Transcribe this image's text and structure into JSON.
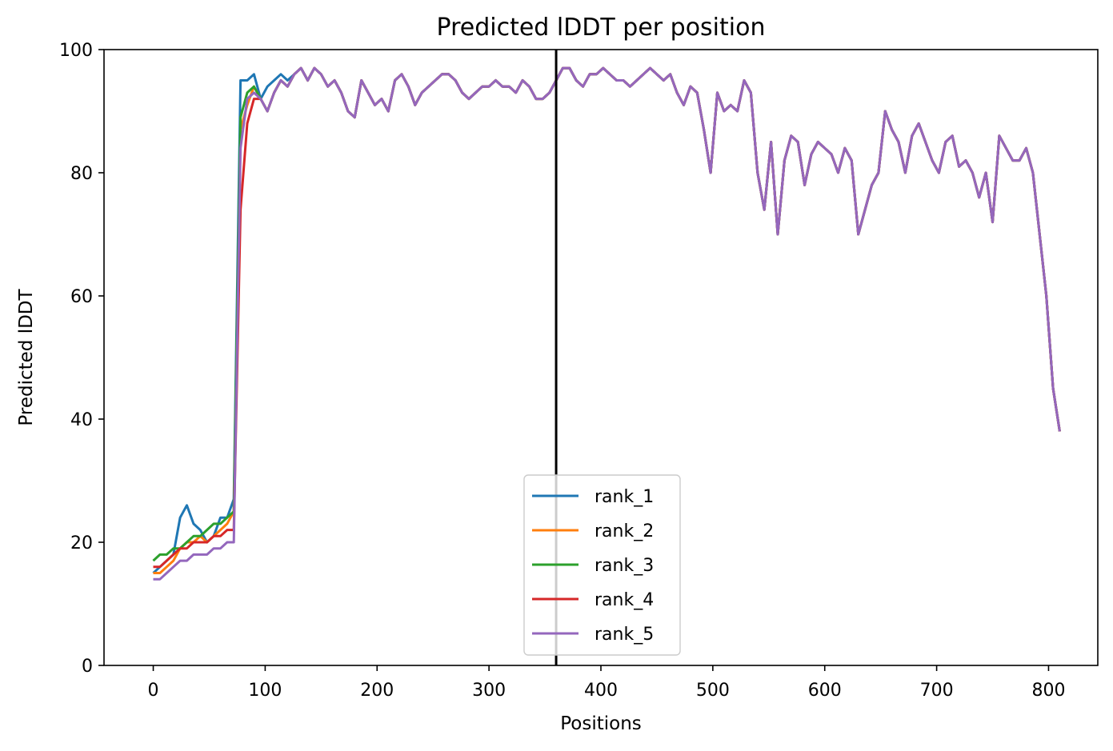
{
  "chart_data": {
    "type": "line",
    "title": "Predicted lDDT per position",
    "xlabel": "Positions",
    "ylabel": "Predicted lDDT",
    "xlim": [
      -44,
      844
    ],
    "ylim": [
      0,
      100
    ],
    "xticks": [
      0,
      100,
      200,
      300,
      400,
      500,
      600,
      700,
      800
    ],
    "yticks": [
      0,
      20,
      40,
      60,
      80,
      100
    ],
    "grid": false,
    "legend_position": "bottom-center",
    "vline_x": 360,
    "x_start": 0,
    "x_step": 6,
    "series": [
      {
        "name": "rank_1",
        "color": "#1f77b4",
        "values": [
          15,
          16,
          17,
          18,
          24,
          26,
          23,
          22,
          20,
          21,
          24,
          24,
          27,
          95,
          95,
          96,
          92,
          94,
          95,
          96,
          95,
          96,
          97,
          95,
          97,
          96,
          94,
          95,
          93,
          90,
          89,
          95,
          93,
          91,
          92,
          90,
          95,
          96,
          94,
          91,
          93,
          94,
          95,
          96,
          96,
          95,
          93,
          92,
          93,
          94,
          94,
          95,
          94,
          94,
          93,
          95,
          94,
          92,
          92,
          93,
          95,
          97,
          97,
          95,
          94,
          96,
          96,
          97,
          96,
          95,
          95,
          94,
          95,
          96,
          97,
          96,
          95,
          96,
          93,
          91,
          94,
          93,
          87,
          80,
          93,
          90,
          91,
          90,
          95,
          93,
          80,
          74,
          85,
          70,
          82,
          86,
          85,
          78,
          83,
          85,
          84,
          83,
          80,
          84,
          82,
          70,
          74,
          78,
          80,
          90,
          87,
          85,
          80,
          86,
          88,
          85,
          82,
          80,
          85,
          86,
          81,
          82,
          80,
          76,
          80,
          72,
          86,
          84,
          82,
          82,
          84,
          80,
          70,
          60,
          45,
          38
        ]
      },
      {
        "name": "rank_2",
        "color": "#ff7f0e",
        "values": [
          15,
          15,
          16,
          17,
          19,
          20,
          20,
          21,
          20,
          21,
          22,
          23,
          25,
          87,
          91,
          94,
          92,
          90,
          93,
          95,
          94,
          96,
          97,
          95,
          97,
          96,
          94,
          95,
          93,
          90,
          89,
          95,
          93,
          91,
          92,
          90,
          95,
          96,
          94,
          91,
          93,
          94,
          95,
          96,
          96,
          95,
          93,
          92,
          93,
          94,
          94,
          95,
          94,
          94,
          93,
          95,
          94,
          92,
          92,
          93,
          95,
          97,
          97,
          95,
          94,
          96,
          96,
          97,
          96,
          95,
          95,
          94,
          95,
          96,
          97,
          96,
          95,
          96,
          93,
          91,
          94,
          93,
          87,
          80,
          93,
          90,
          91,
          90,
          95,
          93,
          80,
          74,
          85,
          70,
          82,
          86,
          85,
          78,
          83,
          85,
          84,
          83,
          80,
          84,
          82,
          70,
          74,
          78,
          80,
          90,
          87,
          85,
          80,
          86,
          88,
          85,
          82,
          80,
          85,
          86,
          81,
          82,
          80,
          76,
          80,
          72,
          86,
          84,
          82,
          82,
          84,
          80,
          70,
          60,
          45,
          38
        ]
      },
      {
        "name": "rank_3",
        "color": "#2ca02c",
        "values": [
          17,
          18,
          18,
          19,
          19,
          20,
          21,
          21,
          22,
          23,
          23,
          24,
          25,
          89,
          93,
          94,
          92,
          90,
          93,
          95,
          94,
          96,
          97,
          95,
          97,
          96,
          94,
          95,
          93,
          90,
          89,
          95,
          93,
          91,
          92,
          90,
          95,
          96,
          94,
          91,
          93,
          94,
          95,
          96,
          96,
          95,
          93,
          92,
          93,
          94,
          94,
          95,
          94,
          94,
          93,
          95,
          94,
          92,
          92,
          93,
          95,
          97,
          97,
          95,
          94,
          96,
          96,
          97,
          96,
          95,
          95,
          94,
          95,
          96,
          97,
          96,
          95,
          96,
          93,
          91,
          94,
          93,
          87,
          80,
          93,
          90,
          91,
          90,
          95,
          93,
          80,
          74,
          85,
          70,
          82,
          86,
          85,
          78,
          83,
          85,
          84,
          83,
          80,
          84,
          82,
          70,
          74,
          78,
          80,
          90,
          87,
          85,
          80,
          86,
          88,
          85,
          82,
          80,
          85,
          86,
          81,
          82,
          80,
          76,
          80,
          72,
          86,
          84,
          82,
          82,
          84,
          80,
          70,
          60,
          45,
          38
        ]
      },
      {
        "name": "rank_4",
        "color": "#d62728",
        "values": [
          16,
          16,
          17,
          18,
          19,
          19,
          20,
          20,
          20,
          21,
          21,
          22,
          22,
          74,
          88,
          92,
          92,
          90,
          93,
          95,
          94,
          96,
          97,
          95,
          97,
          96,
          94,
          95,
          93,
          90,
          89,
          95,
          93,
          91,
          92,
          90,
          95,
          96,
          94,
          91,
          93,
          94,
          95,
          96,
          96,
          95,
          93,
          92,
          93,
          94,
          94,
          95,
          94,
          94,
          93,
          95,
          94,
          92,
          92,
          93,
          95,
          97,
          97,
          95,
          94,
          96,
          96,
          97,
          96,
          95,
          95,
          94,
          95,
          96,
          97,
          96,
          95,
          96,
          93,
          91,
          94,
          93,
          87,
          80,
          93,
          90,
          91,
          90,
          95,
          93,
          80,
          74,
          85,
          70,
          82,
          86,
          85,
          78,
          83,
          85,
          84,
          83,
          80,
          84,
          82,
          70,
          74,
          78,
          80,
          90,
          87,
          85,
          80,
          86,
          88,
          85,
          82,
          80,
          85,
          86,
          81,
          82,
          80,
          76,
          80,
          72,
          86,
          84,
          82,
          82,
          84,
          80,
          70,
          60,
          45,
          38
        ]
      },
      {
        "name": "rank_5",
        "color": "#9467bd",
        "values": [
          14,
          14,
          15,
          16,
          17,
          17,
          18,
          18,
          18,
          19,
          19,
          20,
          20,
          84,
          92,
          93,
          92,
          90,
          93,
          95,
          94,
          96,
          97,
          95,
          97,
          96,
          94,
          95,
          93,
          90,
          89,
          95,
          93,
          91,
          92,
          90,
          95,
          96,
          94,
          91,
          93,
          94,
          95,
          96,
          96,
          95,
          93,
          92,
          93,
          94,
          94,
          95,
          94,
          94,
          93,
          95,
          94,
          92,
          92,
          93,
          95,
          97,
          97,
          95,
          94,
          96,
          96,
          97,
          96,
          95,
          95,
          94,
          95,
          96,
          97,
          96,
          95,
          96,
          93,
          91,
          94,
          93,
          87,
          80,
          93,
          90,
          91,
          90,
          95,
          93,
          80,
          74,
          85,
          70,
          82,
          86,
          85,
          78,
          83,
          85,
          84,
          83,
          80,
          84,
          82,
          70,
          74,
          78,
          80,
          90,
          87,
          85,
          80,
          86,
          88,
          85,
          82,
          80,
          85,
          86,
          81,
          82,
          80,
          76,
          80,
          72,
          86,
          84,
          82,
          82,
          84,
          80,
          70,
          60,
          45,
          38
        ]
      }
    ]
  }
}
